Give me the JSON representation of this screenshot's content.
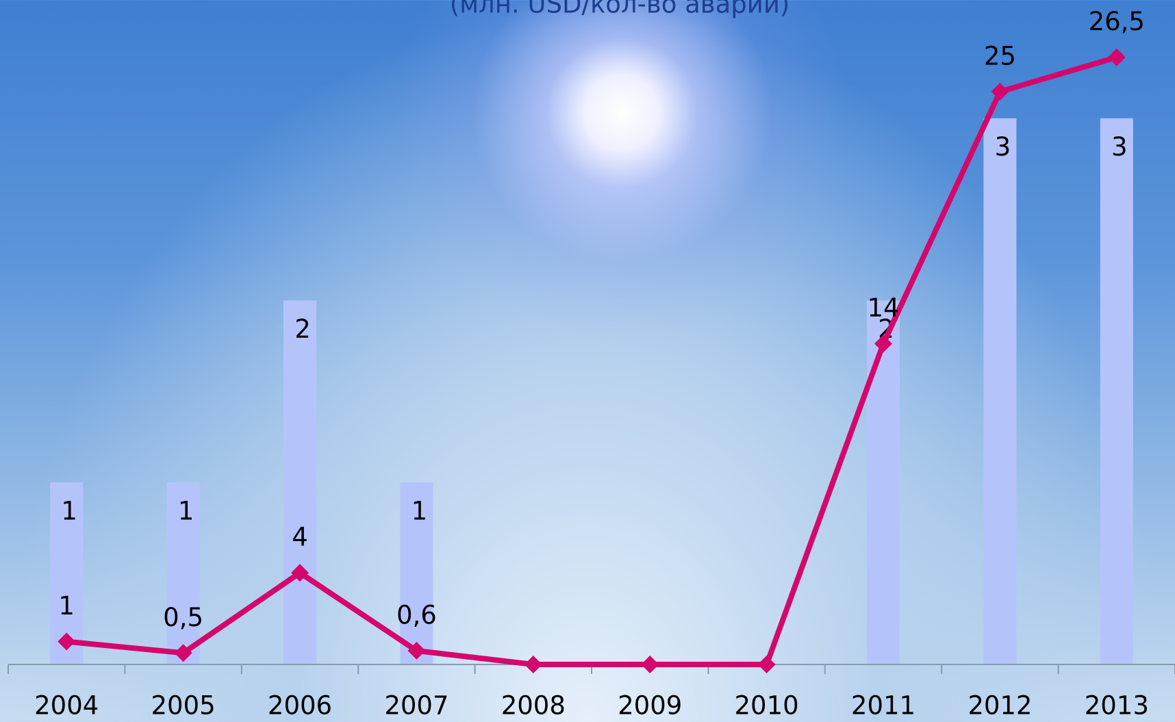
{
  "chart_data": {
    "type": "bar-line",
    "title": "(млн. USD/кол-во аварий)",
    "categories": [
      "2004",
      "2005",
      "2006",
      "2007",
      "2008",
      "2009",
      "2010",
      "2011",
      "2012",
      "2013"
    ],
    "series": [
      {
        "type": "bar",
        "color": "#b4c4fb",
        "values": [
          1,
          1,
          2,
          1,
          0,
          0,
          0,
          2,
          3,
          3
        ],
        "value_labels": [
          "1",
          "1",
          "2",
          "1",
          null,
          null,
          null,
          "2",
          "3",
          "3"
        ]
      },
      {
        "type": "line",
        "axis": "y2",
        "color": "#d4086c",
        "values": [
          1,
          0.5,
          4,
          0.6,
          0,
          0,
          0,
          14,
          25,
          26.5
        ],
        "value_labels": [
          "1",
          "0,5",
          "4",
          "0,6",
          null,
          null,
          null,
          "14",
          "25",
          "26,5"
        ]
      }
    ],
    "ylim": [
      0,
      3.65
    ],
    "y2lim": [
      0,
      29
    ]
  }
}
